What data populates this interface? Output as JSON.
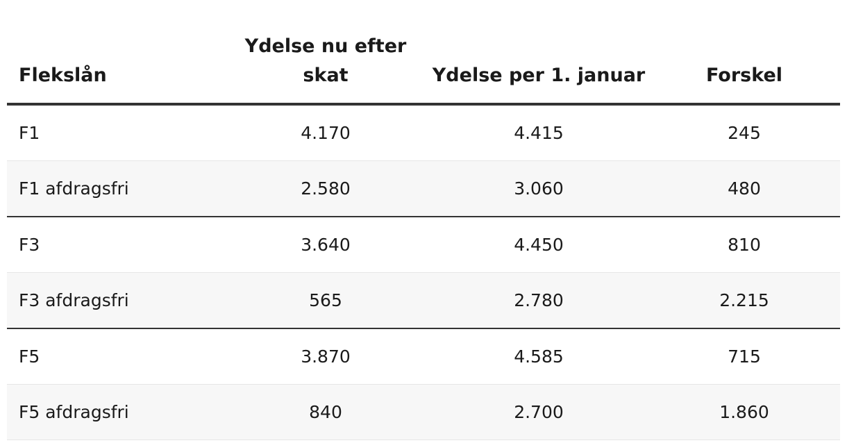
{
  "table": {
    "header": [
      "Flekslån",
      "Ydelse nu efter skat",
      "Ydelse per 1. januar",
      "Forskel"
    ],
    "rows": [
      [
        "F1",
        "4.170",
        "4.415",
        "245"
      ],
      [
        "F1 afdragsfri",
        "2.580",
        "3.060",
        "480"
      ],
      [
        "F3",
        "3.640",
        "4.450",
        "810"
      ],
      [
        "F3 afdragsfri",
        "565",
        "2.780",
        "2.215"
      ],
      [
        "F5",
        "3.870",
        "4.585",
        "715"
      ],
      [
        "F5 afdragsfri",
        "840",
        "2.700",
        "1.860"
      ]
    ]
  }
}
